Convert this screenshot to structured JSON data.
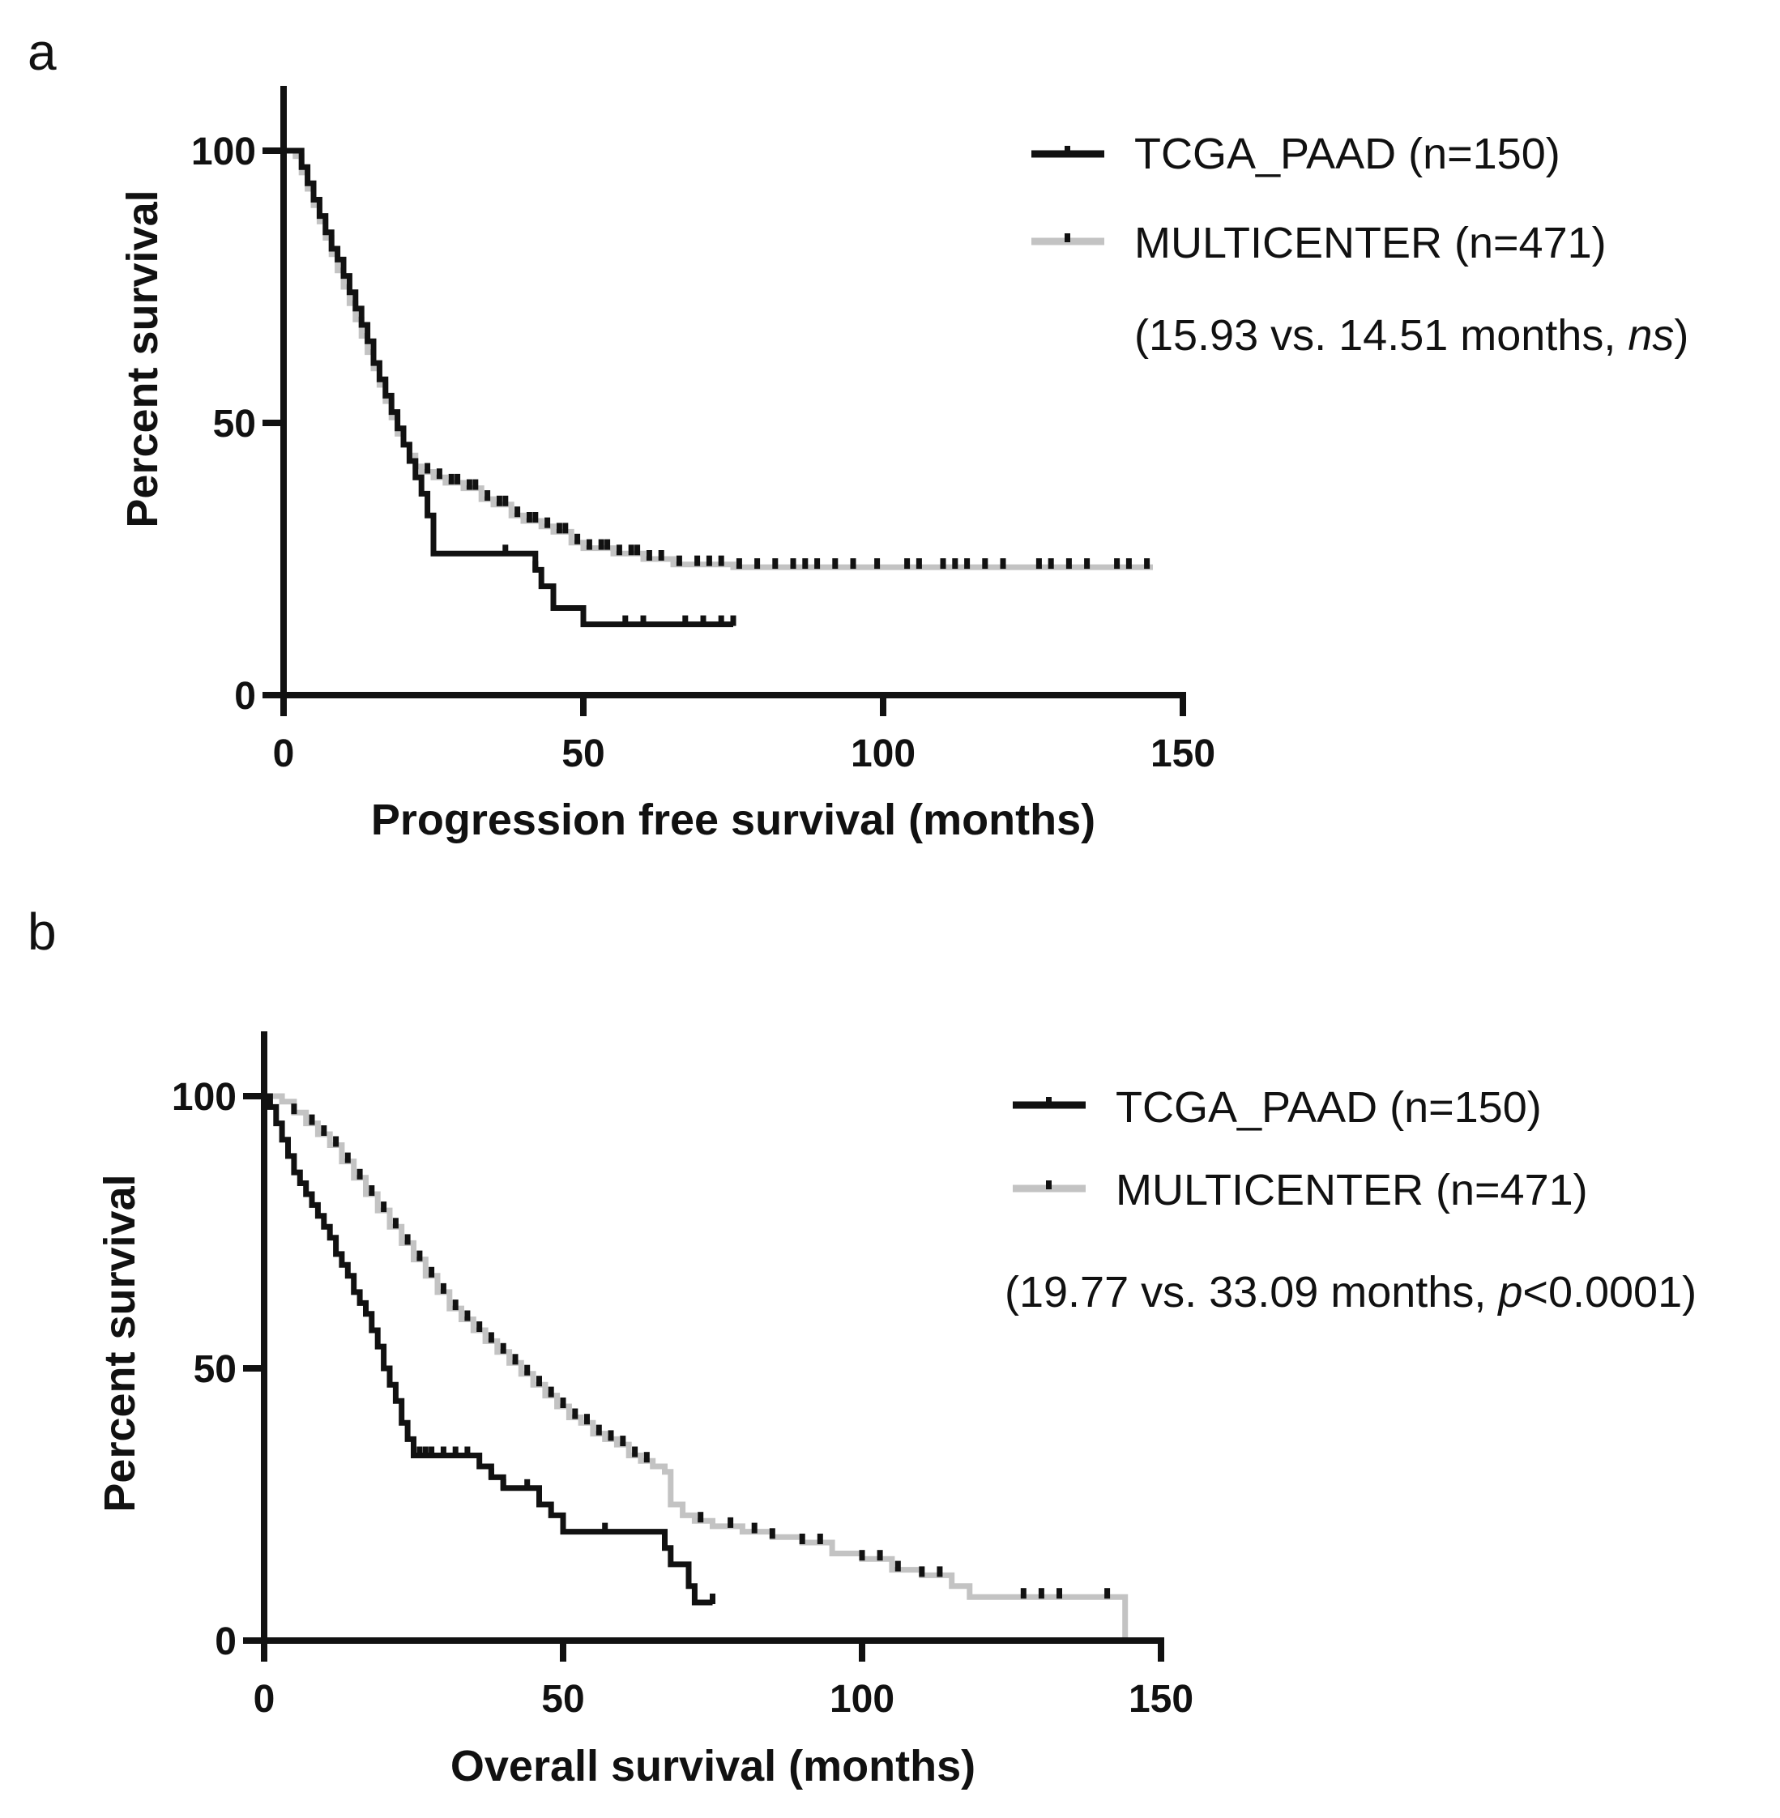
{
  "chart_data": [
    {
      "type": "line",
      "panel": "a",
      "xlabel": "Progression free survival  (months)",
      "ylabel": "Percent survival",
      "xlim": [
        0,
        150
      ],
      "ylim": [
        0,
        110
      ],
      "xticks": [
        0,
        50,
        100,
        150
      ],
      "yticks": [
        0,
        50,
        100
      ],
      "legend_position": "top-right",
      "annotation": {
        "prefix": "(15.93 vs. 14.51 months, ",
        "italic": "ns",
        "suffix": ")"
      },
      "series": [
        {
          "name": "TCGA_PAAD (n=150)",
          "color": "#111111",
          "points": [
            [
              0,
              100
            ],
            [
              2,
              100
            ],
            [
              3,
              97
            ],
            [
              4,
              94
            ],
            [
              5,
              91
            ],
            [
              6,
              88
            ],
            [
              7,
              85
            ],
            [
              8,
              82
            ],
            [
              9,
              80
            ],
            [
              10,
              77
            ],
            [
              11,
              74
            ],
            [
              12,
              71
            ],
            [
              13,
              68
            ],
            [
              14,
              65
            ],
            [
              15,
              61
            ],
            [
              16,
              58
            ],
            [
              17,
              55
            ],
            [
              18,
              52
            ],
            [
              19,
              49
            ],
            [
              20,
              46
            ],
            [
              21,
              43
            ],
            [
              22,
              40
            ],
            [
              23,
              37
            ],
            [
              24,
              33
            ],
            [
              25,
              26
            ],
            [
              30,
              26
            ],
            [
              35,
              26
            ],
            [
              40,
              26
            ],
            [
              42,
              23
            ],
            [
              43,
              20
            ],
            [
              45,
              16
            ],
            [
              48,
              16
            ],
            [
              50,
              13
            ],
            [
              55,
              13
            ],
            [
              60,
              13
            ],
            [
              65,
              13
            ],
            [
              70,
              13
            ],
            [
              75,
              13
            ]
          ],
          "censor_x": [
            37,
            42,
            57,
            60,
            67,
            70,
            73,
            75
          ]
        },
        {
          "name": "MULTICENTER (n=471)",
          "color": "#c3c3c3",
          "points": [
            [
              0,
              100
            ],
            [
              2,
              99
            ],
            [
              3,
              96
            ],
            [
              4,
              93
            ],
            [
              5,
              90
            ],
            [
              6,
              87
            ],
            [
              7,
              84
            ],
            [
              8,
              81
            ],
            [
              9,
              78
            ],
            [
              10,
              75
            ],
            [
              11,
              72
            ],
            [
              12,
              69
            ],
            [
              13,
              66
            ],
            [
              14,
              63
            ],
            [
              15,
              60
            ],
            [
              16,
              57
            ],
            [
              17,
              54
            ],
            [
              18,
              51
            ],
            [
              19,
              48
            ],
            [
              20,
              46
            ],
            [
              21,
              44
            ],
            [
              22,
              42
            ],
            [
              23,
              41
            ],
            [
              25,
              40
            ],
            [
              27,
              39
            ],
            [
              30,
              38
            ],
            [
              33,
              36
            ],
            [
              35,
              35
            ],
            [
              38,
              33
            ],
            [
              40,
              32
            ],
            [
              43,
              31
            ],
            [
              45,
              30
            ],
            [
              48,
              28
            ],
            [
              50,
              27
            ],
            [
              55,
              26
            ],
            [
              60,
              25
            ],
            [
              65,
              24
            ],
            [
              70,
              24
            ],
            [
              75,
              23.5
            ],
            [
              80,
              23.5
            ],
            [
              90,
              23.5
            ],
            [
              100,
              23.5
            ],
            [
              110,
              23.5
            ],
            [
              120,
              23.5
            ],
            [
              130,
              23.5
            ],
            [
              145,
              23.5
            ]
          ],
          "censor_x": [
            24,
            26,
            28,
            29,
            31,
            32,
            34,
            36,
            37,
            39,
            41,
            42,
            44,
            46,
            47,
            49,
            51,
            53,
            54,
            56,
            58,
            59,
            61,
            63,
            66,
            69,
            71,
            73,
            76,
            79,
            82,
            85,
            87,
            89,
            92,
            95,
            99,
            104,
            106,
            110,
            112,
            114,
            117,
            120,
            126,
            128,
            131,
            134,
            139,
            141,
            144
          ]
        }
      ]
    },
    {
      "type": "line",
      "panel": "b",
      "xlabel": "Overall survival (months)",
      "ylabel": "Percent survival",
      "xlim": [
        0,
        150
      ],
      "ylim": [
        0,
        110
      ],
      "xticks": [
        0,
        50,
        100,
        150
      ],
      "yticks": [
        0,
        50,
        100
      ],
      "legend_position": "top-right",
      "annotation": {
        "prefix": "(19.77 vs. 33.09 months, ",
        "italic": "p",
        "suffix": "<0.0001)"
      },
      "series": [
        {
          "name": "TCGA_PAAD (n=150)",
          "color": "#111111",
          "points": [
            [
              0,
              100
            ],
            [
              1,
              98
            ],
            [
              2,
              95
            ],
            [
              3,
              92
            ],
            [
              4,
              89
            ],
            [
              5,
              86
            ],
            [
              6,
              84
            ],
            [
              7,
              82
            ],
            [
              8,
              80
            ],
            [
              9,
              78
            ],
            [
              10,
              76
            ],
            [
              11,
              74
            ],
            [
              12,
              71
            ],
            [
              13,
              69
            ],
            [
              14,
              67
            ],
            [
              15,
              64
            ],
            [
              16,
              62
            ],
            [
              17,
              60
            ],
            [
              18,
              57
            ],
            [
              19,
              54
            ],
            [
              20,
              50
            ],
            [
              21,
              47
            ],
            [
              22,
              44
            ],
            [
              23,
              40
            ],
            [
              24,
              37
            ],
            [
              25,
              34
            ],
            [
              30,
              34
            ],
            [
              35,
              34
            ],
            [
              36,
              32
            ],
            [
              38,
              30
            ],
            [
              40,
              28
            ],
            [
              45,
              28
            ],
            [
              46,
              25
            ],
            [
              48,
              23
            ],
            [
              50,
              20
            ],
            [
              55,
              20
            ],
            [
              60,
              20
            ],
            [
              65,
              20
            ],
            [
              67,
              17
            ],
            [
              68,
              14
            ],
            [
              70,
              14
            ],
            [
              71,
              10
            ],
            [
              72,
              7
            ],
            [
              75,
              7
            ]
          ],
          "censor_x": [
            26,
            27,
            28,
            30,
            32,
            34,
            38,
            40,
            44,
            57,
            75
          ]
        },
        {
          "name": "MULTICENTER (n=471)",
          "color": "#c3c3c3",
          "points": [
            [
              0,
              100
            ],
            [
              3,
              99
            ],
            [
              5,
              97
            ],
            [
              7,
              95
            ],
            [
              9,
              93
            ],
            [
              11,
              91
            ],
            [
              13,
              88
            ],
            [
              15,
              85
            ],
            [
              17,
              82
            ],
            [
              19,
              79
            ],
            [
              21,
              76
            ],
            [
              23,
              73
            ],
            [
              25,
              70
            ],
            [
              27,
              67
            ],
            [
              29,
              64
            ],
            [
              31,
              61
            ],
            [
              33,
              59
            ],
            [
              35,
              57
            ],
            [
              37,
              55
            ],
            [
              39,
              53
            ],
            [
              41,
              51
            ],
            [
              43,
              49
            ],
            [
              45,
              47
            ],
            [
              47,
              45
            ],
            [
              49,
              43
            ],
            [
              51,
              41
            ],
            [
              53,
              40
            ],
            [
              55,
              38
            ],
            [
              57,
              37
            ],
            [
              59,
              36
            ],
            [
              61,
              34
            ],
            [
              63,
              33
            ],
            [
              65,
              32
            ],
            [
              67,
              31
            ],
            [
              68,
              25
            ],
            [
              70,
              23
            ],
            [
              72,
              22
            ],
            [
              75,
              21
            ],
            [
              80,
              20
            ],
            [
              85,
              19
            ],
            [
              90,
              18
            ],
            [
              95,
              16
            ],
            [
              100,
              15
            ],
            [
              105,
              13
            ],
            [
              110,
              12
            ],
            [
              115,
              10
            ],
            [
              118,
              8
            ],
            [
              125,
              8
            ],
            [
              130,
              8
            ],
            [
              140,
              8
            ],
            [
              143,
              8
            ],
            [
              144,
              0
            ]
          ],
          "censor_x": [
            5,
            8,
            10,
            12,
            14,
            16,
            18,
            20,
            22,
            24,
            26,
            28,
            30,
            32,
            34,
            36,
            38,
            40,
            42,
            44,
            46,
            48,
            50,
            52,
            54,
            56,
            58,
            60,
            62,
            64,
            73,
            78,
            82,
            85,
            90,
            93,
            100,
            103,
            106,
            110,
            113,
            127,
            130,
            133,
            141
          ]
        }
      ]
    }
  ]
}
